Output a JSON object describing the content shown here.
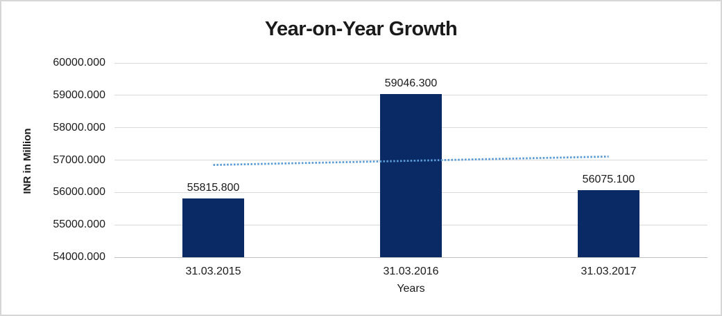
{
  "chart_data": {
    "type": "bar",
    "title": "Year-on-Year Growth",
    "xlabel": "Years",
    "ylabel": "INR in Million",
    "categories": [
      "31.03.2015",
      "31.03.2016",
      "31.03.2017"
    ],
    "series": [
      {
        "values": [
          55815.8,
          59046.3,
          56075.1
        ],
        "data_labels": [
          "55815.800",
          "59046.300",
          "56075.100"
        ],
        "color": "#0A2A66"
      }
    ],
    "trendline": {
      "type": "linear",
      "style": "dotted",
      "color": "#5B9BD5",
      "start_value": 56849.4,
      "end_value": 57108.7
    },
    "ylim": [
      54000,
      60000
    ],
    "ytick_values": [
      60000,
      59000,
      58000,
      57000,
      56000,
      55000,
      54000
    ],
    "ytick_labels": [
      "60000.000",
      "59000.000",
      "58000.000",
      "57000.000",
      "56000.000",
      "55000.000",
      "54000.000"
    ],
    "grid": true,
    "legend": "none",
    "colors": {
      "gridline": "#D9D9D9",
      "axis_line": "#BFBFBF",
      "text": "#1A1A1A",
      "frame_border": "#D6D6D6",
      "background": "#FFFFFF"
    }
  }
}
